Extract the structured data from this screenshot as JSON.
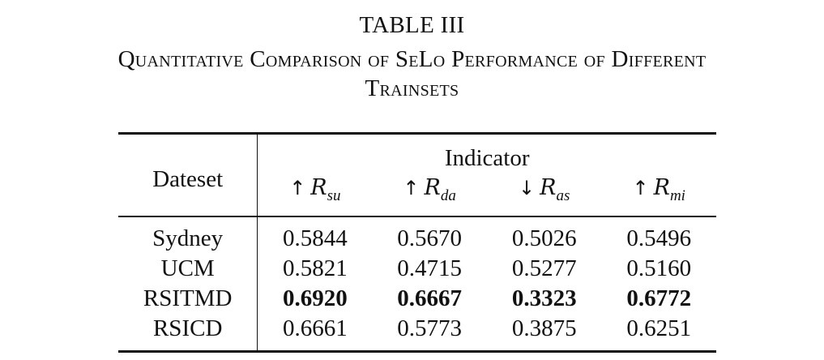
{
  "caption": {
    "label": "TABLE III",
    "line1": "Quantitative Comparison of SeLo Performance of Different",
    "line2": "Trainsets"
  },
  "table": {
    "dataset_header": "Dateset",
    "indicator_header": "Indicator",
    "metrics": [
      {
        "arrow": "↑",
        "symbol": "R",
        "sub": "su"
      },
      {
        "arrow": "↑",
        "symbol": "R",
        "sub": "da"
      },
      {
        "arrow": "↓",
        "symbol": "R",
        "sub": "as"
      },
      {
        "arrow": "↑",
        "symbol": "R",
        "sub": "mi"
      }
    ],
    "rows": [
      {
        "dataset": "Sydney",
        "values": [
          "0.5844",
          "0.5670",
          "0.5026",
          "0.5496"
        ],
        "bold": false
      },
      {
        "dataset": "UCM",
        "values": [
          "0.5821",
          "0.4715",
          "0.5277",
          "0.5160"
        ],
        "bold": false
      },
      {
        "dataset": "RSITMD",
        "values": [
          "0.6920",
          "0.6667",
          "0.3323",
          "0.6772"
        ],
        "bold": true
      },
      {
        "dataset": "RSICD",
        "values": [
          "0.6661",
          "0.5773",
          "0.3875",
          "0.6251"
        ],
        "bold": false
      }
    ]
  }
}
